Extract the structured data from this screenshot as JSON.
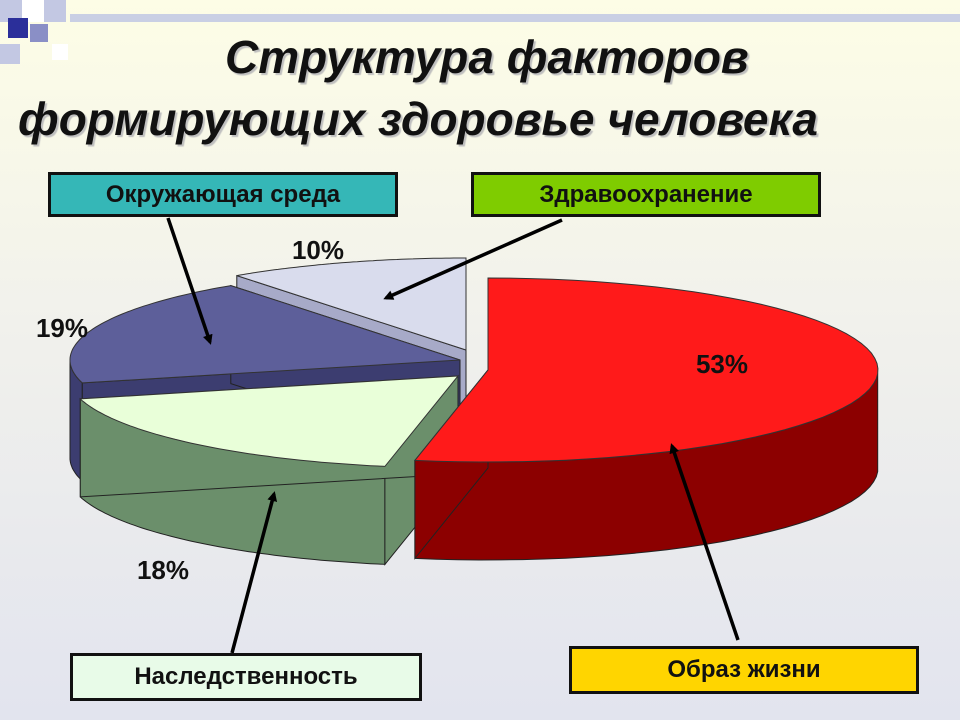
{
  "title": {
    "line1": "Структура факторов",
    "line2": "формирующих здоровье человека"
  },
  "chart_data": {
    "type": "pie",
    "title": "Структура факторов формирующих здоровье человека",
    "slices": [
      {
        "label": "Образ жизни",
        "value": 53,
        "value_label": "53%",
        "color": "#ff1a1a",
        "side_color": "#8c0000"
      },
      {
        "label": "Наследственность",
        "value": 18,
        "value_label": "18%",
        "color": "#e9ffd9",
        "side_color": "#6b8f6b"
      },
      {
        "label": "Окружающая среда",
        "value": 19,
        "value_label": "19%",
        "color": "#5d5f9a",
        "side_color": "#3c3d70"
      },
      {
        "label": "Здравоохранение",
        "value": 10,
        "value_label": "10%",
        "color": "#d9dced",
        "side_color": "#a7aac8"
      }
    ],
    "legend": "callout-boxes"
  },
  "labels": {
    "environment": "Окружающая среда",
    "healthcare": "Здравоохранение",
    "heredity": "Наследственность",
    "lifestyle": "Образ жизни"
  }
}
